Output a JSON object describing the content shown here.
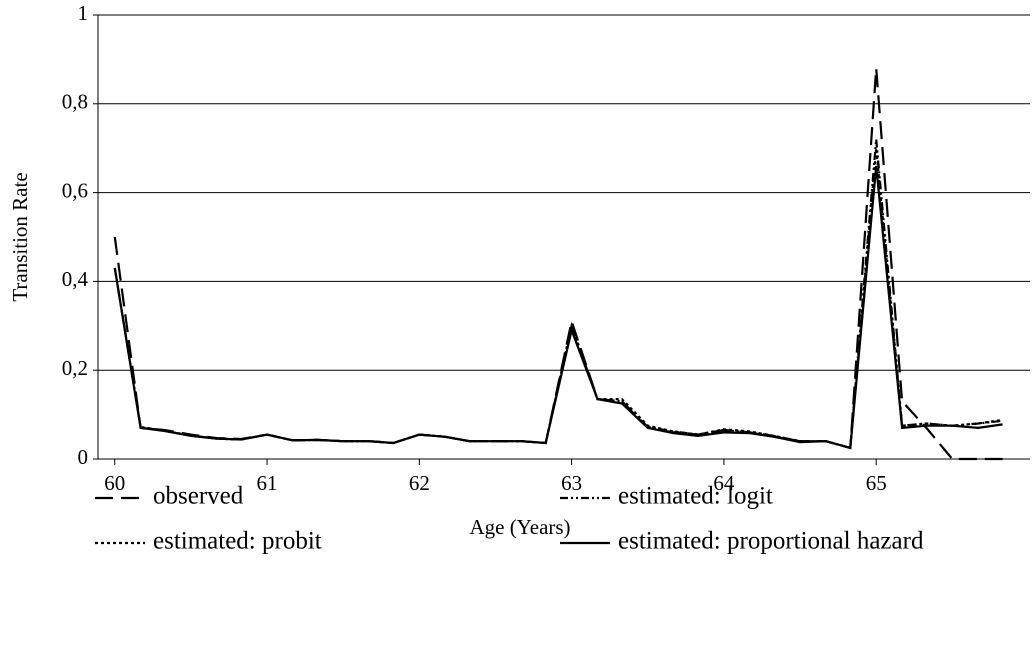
{
  "chart_data": {
    "type": "line",
    "x_label": "Age (Years)",
    "y_label": "Transition Rate",
    "x": [
      60,
      60.17,
      60.33,
      60.5,
      60.67,
      60.83,
      61,
      61.17,
      61.33,
      61.5,
      61.67,
      61.83,
      62,
      62.17,
      62.33,
      62.5,
      62.67,
      62.83,
      63,
      63.17,
      63.33,
      63.5,
      63.67,
      63.83,
      64,
      64.17,
      64.33,
      64.5,
      64.67,
      64.83,
      65,
      65.17,
      65.33,
      65.5,
      65.67,
      65.83
    ],
    "xlim": [
      59.89,
      66.01
    ],
    "xticks": [
      60,
      61,
      62,
      63,
      64,
      65
    ],
    "ylim": [
      0,
      1
    ],
    "yticks": [
      0,
      {
        "value": 0.2,
        "label": "0,2"
      },
      {
        "value": 0.4,
        "label": "0,4"
      },
      {
        "value": 0.6,
        "label": "0,6"
      },
      {
        "value": 0.8,
        "label": "0,8"
      },
      1
    ],
    "grid": true,
    "series": [
      {
        "name": "observed",
        "color": "#000000",
        "dash": "18,8",
        "values": [
          0.5,
          0.07,
          0.065,
          0.055,
          0.047,
          0.045,
          0.055,
          0.042,
          0.043,
          0.04,
          0.04,
          0.036,
          0.055,
          0.05,
          0.04,
          0.04,
          0.04,
          0.036,
          0.31,
          0.135,
          0.13,
          0.07,
          0.06,
          0.055,
          0.065,
          0.06,
          0.05,
          0.04,
          0.04,
          0.025,
          0.88,
          0.13,
          0.07,
          0.0,
          0.0,
          0.0
        ]
      },
      {
        "name": "estimated: logit",
        "color": "#000000",
        "dash": "8,3,2,3,2,3",
        "values": [
          0.43,
          0.072,
          0.063,
          0.053,
          0.046,
          0.044,
          0.055,
          0.042,
          0.043,
          0.04,
          0.04,
          0.036,
          0.055,
          0.05,
          0.04,
          0.04,
          0.04,
          0.036,
          0.3,
          0.135,
          0.13,
          0.072,
          0.062,
          0.055,
          0.065,
          0.06,
          0.052,
          0.04,
          0.04,
          0.025,
          0.72,
          0.075,
          0.08,
          0.075,
          0.08,
          0.086
        ]
      },
      {
        "name": "estimated: probit",
        "color": "#000000",
        "dash": "3,3",
        "values": [
          0.43,
          0.072,
          0.063,
          0.053,
          0.046,
          0.044,
          0.055,
          0.042,
          0.043,
          0.04,
          0.04,
          0.036,
          0.055,
          0.05,
          0.04,
          0.04,
          0.04,
          0.036,
          0.3,
          0.135,
          0.135,
          0.075,
          0.062,
          0.055,
          0.067,
          0.062,
          0.052,
          0.04,
          0.04,
          0.025,
          0.7,
          0.075,
          0.08,
          0.075,
          0.08,
          0.088
        ]
      },
      {
        "name": "estimated: proportional hazard",
        "color": "#000000",
        "dash": "",
        "values": [
          0.43,
          0.07,
          0.063,
          0.052,
          0.046,
          0.044,
          0.055,
          0.042,
          0.043,
          0.04,
          0.04,
          0.036,
          0.055,
          0.05,
          0.04,
          0.04,
          0.04,
          0.036,
          0.29,
          0.135,
          0.125,
          0.07,
          0.058,
          0.052,
          0.06,
          0.058,
          0.05,
          0.038,
          0.04,
          0.025,
          0.66,
          0.07,
          0.075,
          0.075,
          0.07,
          0.078
        ]
      }
    ]
  }
}
